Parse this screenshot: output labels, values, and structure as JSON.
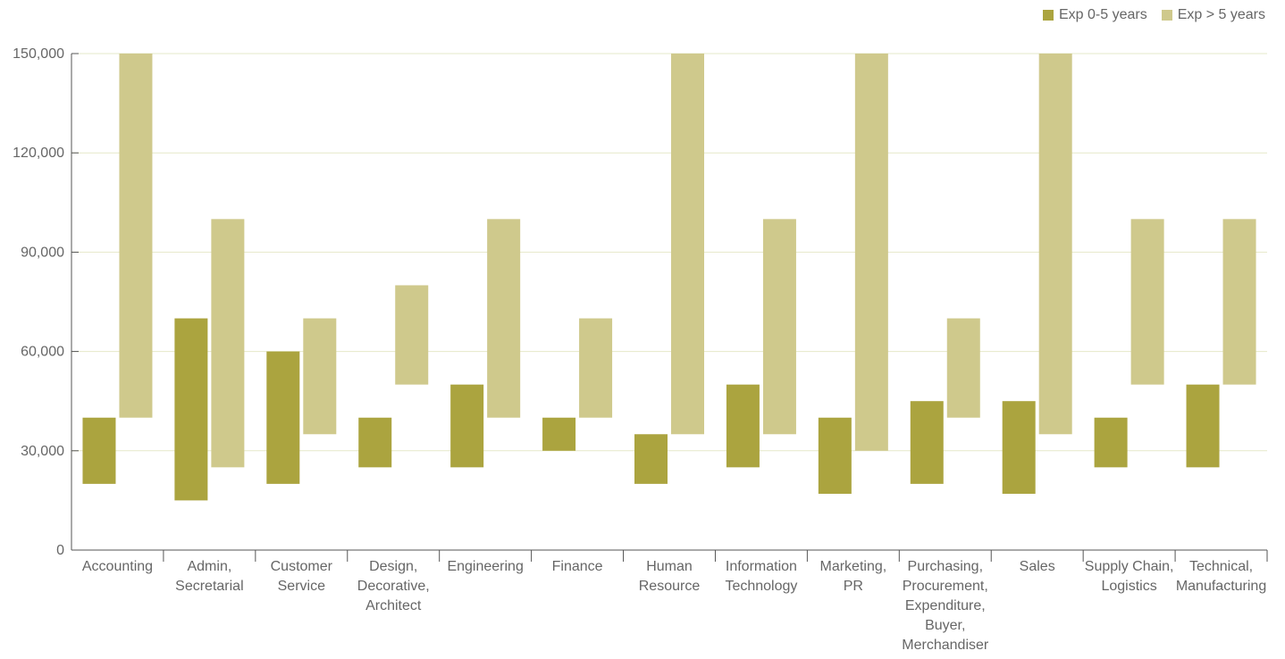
{
  "chart_data": {
    "type": "bar",
    "subtype": "floating-range",
    "categories": [
      "Accounting",
      "Admin, Secretarial",
      "Customer Service",
      "Design, Decorative, Architect",
      "Engineering",
      "Finance",
      "Human Resource",
      "Information Technology",
      "Marketing, PR",
      "Purchasing, Procurement, Expenditure, Buyer, Merchandiser",
      "Sales",
      "Supply Chain, Logistics",
      "Technical, Manufacturing"
    ],
    "category_label_lines": [
      [
        "Accounting"
      ],
      [
        "Admin,",
        "Secretarial"
      ],
      [
        "Customer",
        "Service"
      ],
      [
        "Design,",
        "Decorative,",
        "Architect"
      ],
      [
        "Engineering"
      ],
      [
        "Finance"
      ],
      [
        "Human",
        "Resource"
      ],
      [
        "Information",
        "Technology"
      ],
      [
        "Marketing,",
        "PR"
      ],
      [
        "Purchasing,",
        "Procurement,",
        "Expenditure,",
        "Buyer,",
        "Merchandiser"
      ],
      [
        "Sales"
      ],
      [
        "Supply Chain,",
        "Logistics"
      ],
      [
        "Technical,",
        "Manufacturing"
      ]
    ],
    "series": [
      {
        "name": "Exp 0-5 years",
        "color": "#aba43f",
        "low": [
          20000,
          15000,
          20000,
          25000,
          25000,
          30000,
          20000,
          25000,
          17000,
          20000,
          17000,
          25000,
          25000
        ],
        "high": [
          40000,
          70000,
          60000,
          40000,
          50000,
          40000,
          35000,
          50000,
          40000,
          45000,
          45000,
          40000,
          50000
        ]
      },
      {
        "name": "Exp > 5 years",
        "color": "#cfc98c",
        "low": [
          40000,
          25000,
          35000,
          50000,
          40000,
          40000,
          35000,
          35000,
          30000,
          40000,
          35000,
          50000,
          50000
        ],
        "high": [
          150000,
          100000,
          70000,
          80000,
          100000,
          70000,
          150000,
          100000,
          150000,
          70000,
          150000,
          100000,
          100000
        ]
      }
    ],
    "y_ticks": [
      "0",
      "30,000",
      "60,000",
      "90,000",
      "120,000",
      "150,000"
    ],
    "ylim": [
      0,
      150000
    ],
    "grid": true,
    "legend_position": "top-right"
  }
}
